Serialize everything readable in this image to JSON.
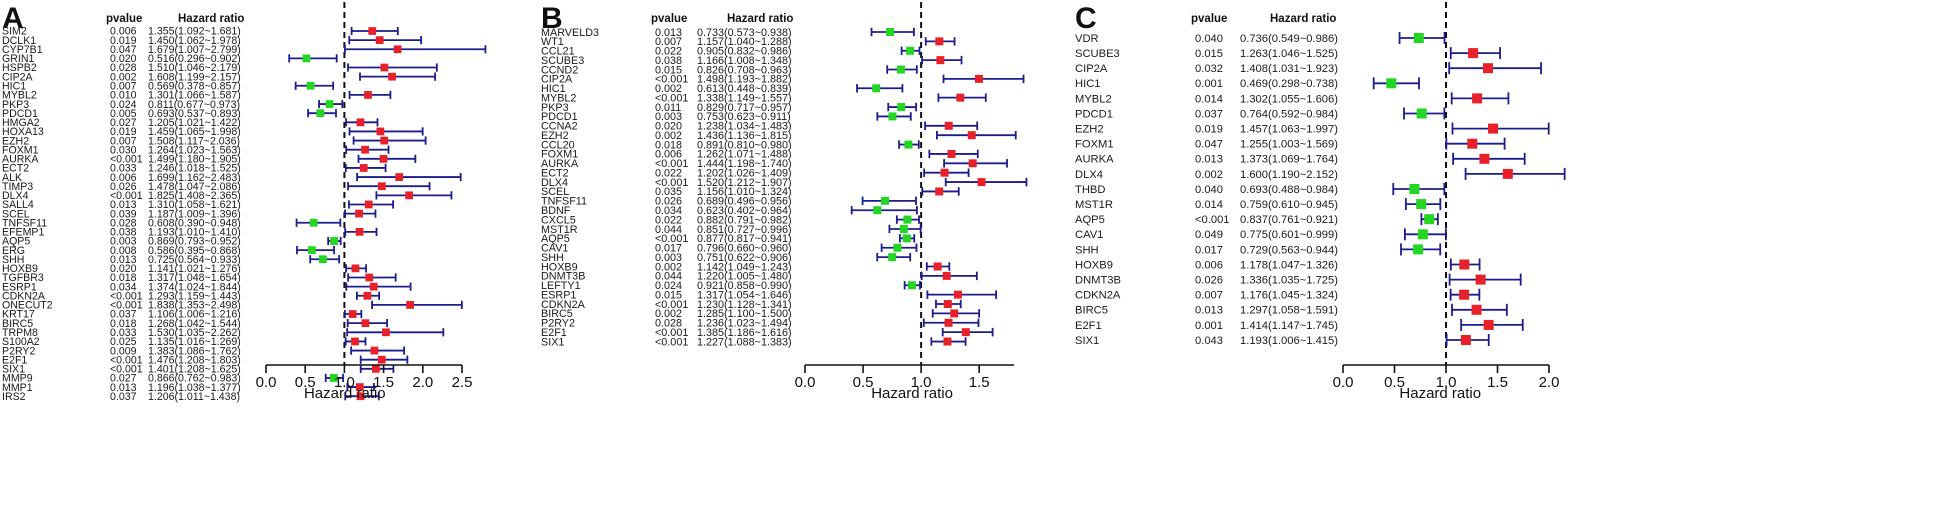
{
  "chart_data": [
    {
      "type": "forest",
      "panel": "A",
      "header": {
        "pvalue": "pvalue",
        "hr": "Hazard ratio"
      },
      "xlabel": "Hazard ratio",
      "xlim": [
        0,
        2.5
      ],
      "ticks": [
        "0.0",
        "0.5",
        "1.0",
        "1.5",
        "2.0",
        "2.5"
      ],
      "reference": 1.0,
      "genes": [
        {
          "name": "SIM2",
          "p": "0.006",
          "hr_text": "1.355(1.092~1.681)",
          "hr": 1.355,
          "lo": 1.092,
          "hi": 1.681
        },
        {
          "name": "DCLK1",
          "p": "0.019",
          "hr_text": "1.450(1.062~1.978)",
          "hr": 1.45,
          "lo": 1.062,
          "hi": 1.978
        },
        {
          "name": "CYP7B1",
          "p": "0.047",
          "hr_text": "1.679(1.007~2.799)",
          "hr": 1.679,
          "lo": 1.007,
          "hi": 2.799
        },
        {
          "name": "GRIN1",
          "p": "0.020",
          "hr_text": "0.516(0.296~0.902)",
          "hr": 0.516,
          "lo": 0.296,
          "hi": 0.902
        },
        {
          "name": "HSPB2",
          "p": "0.028",
          "hr_text": "1.510(1.046~2.179)",
          "hr": 1.51,
          "lo": 1.046,
          "hi": 2.179
        },
        {
          "name": "CIP2A",
          "p": "0.002",
          "hr_text": "1.608(1.199~2.157)",
          "hr": 1.608,
          "lo": 1.199,
          "hi": 2.157
        },
        {
          "name": "HIC1",
          "p": "0.007",
          "hr_text": "0.569(0.378~0.857)",
          "hr": 0.569,
          "lo": 0.378,
          "hi": 0.857
        },
        {
          "name": "MYBL2",
          "p": "0.010",
          "hr_text": "1.301(1.066~1.587)",
          "hr": 1.301,
          "lo": 1.066,
          "hi": 1.587
        },
        {
          "name": "PKP3",
          "p": "0.024",
          "hr_text": "0.811(0.677~0.973)",
          "hr": 0.811,
          "lo": 0.677,
          "hi": 0.973
        },
        {
          "name": "PDCD1",
          "p": "0.005",
          "hr_text": "0.693(0.537~0.893)",
          "hr": 0.693,
          "lo": 0.537,
          "hi": 0.893
        },
        {
          "name": "HMGA2",
          "p": "0.027",
          "hr_text": "1.205(1.021~1.422)",
          "hr": 1.205,
          "lo": 1.021,
          "hi": 1.422
        },
        {
          "name": "HOXA13",
          "p": "0.019",
          "hr_text": "1.459(1.065~1.998)",
          "hr": 1.459,
          "lo": 1.065,
          "hi": 1.998
        },
        {
          "name": "EZH2",
          "p": "0.007",
          "hr_text": "1.508(1.117~2.036)",
          "hr": 1.508,
          "lo": 1.117,
          "hi": 2.036
        },
        {
          "name": "FOXM1",
          "p": "0.030",
          "hr_text": "1.264(1.023~1.563)",
          "hr": 1.264,
          "lo": 1.023,
          "hi": 1.563
        },
        {
          "name": "AURKA",
          "p": "<0.001",
          "hr_text": "1.499(1.180~1.905)",
          "hr": 1.499,
          "lo": 1.18,
          "hi": 1.905
        },
        {
          "name": "ECT2",
          "p": "0.033",
          "hr_text": "1.246(1.018~1.525)",
          "hr": 1.246,
          "lo": 1.018,
          "hi": 1.525
        },
        {
          "name": "ALK",
          "p": "0.006",
          "hr_text": "1.699(1.162~2.483)",
          "hr": 1.699,
          "lo": 1.162,
          "hi": 2.483
        },
        {
          "name": "TIMP3",
          "p": "0.026",
          "hr_text": "1.478(1.047~2.086)",
          "hr": 1.478,
          "lo": 1.047,
          "hi": 2.086
        },
        {
          "name": "DLX4",
          "p": "<0.001",
          "hr_text": "1.825(1.408~2.365)",
          "hr": 1.825,
          "lo": 1.408,
          "hi": 2.365
        },
        {
          "name": "SALL4",
          "p": "0.013",
          "hr_text": "1.310(1.058~1.621)",
          "hr": 1.31,
          "lo": 1.058,
          "hi": 1.621
        },
        {
          "name": "SCEL",
          "p": "0.039",
          "hr_text": "1.187(1.009~1.396)",
          "hr": 1.187,
          "lo": 1.009,
          "hi": 1.396
        },
        {
          "name": "TNFSF11",
          "p": "0.028",
          "hr_text": "0.608(0.390~0.948)",
          "hr": 0.608,
          "lo": 0.39,
          "hi": 0.948
        },
        {
          "name": "EFEMP1",
          "p": "0.038",
          "hr_text": "1.193(1.010~1.410)",
          "hr": 1.193,
          "lo": 1.01,
          "hi": 1.41
        },
        {
          "name": "AQP5",
          "p": "0.003",
          "hr_text": "0.869(0.793~0.952)",
          "hr": 0.869,
          "lo": 0.793,
          "hi": 0.952
        },
        {
          "name": "ERG",
          "p": "0.008",
          "hr_text": "0.586(0.395~0.868)",
          "hr": 0.586,
          "lo": 0.395,
          "hi": 0.868
        },
        {
          "name": "SHH",
          "p": "0.013",
          "hr_text": "0.725(0.564~0.933)",
          "hr": 0.725,
          "lo": 0.564,
          "hi": 0.933
        },
        {
          "name": "HOXB9",
          "p": "0.020",
          "hr_text": "1.141(1.021~1.276)",
          "hr": 1.141,
          "lo": 1.021,
          "hi": 1.276
        },
        {
          "name": "TGFBR3",
          "p": "0.018",
          "hr_text": "1.317(1.048~1.654)",
          "hr": 1.317,
          "lo": 1.048,
          "hi": 1.654
        },
        {
          "name": "ESRP1",
          "p": "0.034",
          "hr_text": "1.374(1.024~1.844)",
          "hr": 1.374,
          "lo": 1.024,
          "hi": 1.844
        },
        {
          "name": "CDKN2A",
          "p": "<0.001",
          "hr_text": "1.293(1.159~1.443)",
          "hr": 1.293,
          "lo": 1.159,
          "hi": 1.443
        },
        {
          "name": "ONECUT2",
          "p": "<0.001",
          "hr_text": "1.838(1.353~2.498)",
          "hr": 1.838,
          "lo": 1.353,
          "hi": 2.498
        },
        {
          "name": "KRT17",
          "p": "0.037",
          "hr_text": "1.106(1.006~1.216)",
          "hr": 1.106,
          "lo": 1.006,
          "hi": 1.216
        },
        {
          "name": "BIRC5",
          "p": "0.018",
          "hr_text": "1.268(1.042~1.544)",
          "hr": 1.268,
          "lo": 1.042,
          "hi": 1.544
        },
        {
          "name": "TRPM8",
          "p": "0.033",
          "hr_text": "1.530(1.035~2.262)",
          "hr": 1.53,
          "lo": 1.035,
          "hi": 2.262
        },
        {
          "name": "S100A2",
          "p": "0.025",
          "hr_text": "1.135(1.016~1.269)",
          "hr": 1.135,
          "lo": 1.016,
          "hi": 1.269
        },
        {
          "name": "P2RY2",
          "p": "0.009",
          "hr_text": "1.383(1.086~1.762)",
          "hr": 1.383,
          "lo": 1.086,
          "hi": 1.762
        },
        {
          "name": "E2F1",
          "p": "<0.001",
          "hr_text": "1.476(1.208~1.803)",
          "hr": 1.476,
          "lo": 1.208,
          "hi": 1.803
        },
        {
          "name": "SIX1",
          "p": "<0.001",
          "hr_text": "1.401(1.208~1.625)",
          "hr": 1.401,
          "lo": 1.208,
          "hi": 1.625
        },
        {
          "name": "MMP9",
          "p": "0.027",
          "hr_text": "0.866(0.762~0.983)",
          "hr": 0.866,
          "lo": 0.762,
          "hi": 0.983
        },
        {
          "name": "MMP1",
          "p": "0.013",
          "hr_text": "1.196(1.038~1.377)",
          "hr": 1.196,
          "lo": 1.038,
          "hi": 1.377
        },
        {
          "name": "IRS2",
          "p": "0.037",
          "hr_text": "1.206(1.011~1.438)",
          "hr": 1.206,
          "lo": 1.011,
          "hi": 1.438
        }
      ]
    },
    {
      "type": "forest",
      "panel": "B",
      "header": {
        "pvalue": "pvalue",
        "hr": "Hazard ratio"
      },
      "xlabel": "Hazard ratio",
      "xlim": [
        0,
        1.8
      ],
      "ticks": [
        "0.0",
        "0.5",
        "1.0",
        "1.5"
      ],
      "reference": 1.0,
      "genes": [
        {
          "name": "MARVELD3",
          "p": "0.013",
          "hr_text": "0.733(0.573~0.938)",
          "hr": 0.733,
          "lo": 0.573,
          "hi": 0.938
        },
        {
          "name": "WT1",
          "p": "0.007",
          "hr_text": "1.157(1.040~1.288)",
          "hr": 1.157,
          "lo": 1.04,
          "hi": 1.288
        },
        {
          "name": "CCL21",
          "p": "0.022",
          "hr_text": "0.905(0.832~0.986)",
          "hr": 0.905,
          "lo": 0.832,
          "hi": 0.986
        },
        {
          "name": "SCUBE3",
          "p": "0.038",
          "hr_text": "1.166(1.008~1.348)",
          "hr": 1.166,
          "lo": 1.008,
          "hi": 1.348
        },
        {
          "name": "CCND2",
          "p": "0.015",
          "hr_text": "0.826(0.708~0.963)",
          "hr": 0.826,
          "lo": 0.708,
          "hi": 0.963
        },
        {
          "name": "CIP2A",
          "p": "<0.001",
          "hr_text": "1.498(1.193~1.882)",
          "hr": 1.498,
          "lo": 1.193,
          "hi": 1.882
        },
        {
          "name": "HIC1",
          "p": "0.002",
          "hr_text": "0.613(0.448~0.839)",
          "hr": 0.613,
          "lo": 0.448,
          "hi": 0.839
        },
        {
          "name": "MYBL2",
          "p": "<0.001",
          "hr_text": "1.338(1.149~1.557)",
          "hr": 1.338,
          "lo": 1.149,
          "hi": 1.557
        },
        {
          "name": "PKP3",
          "p": "0.011",
          "hr_text": "0.829(0.717~0.957)",
          "hr": 0.829,
          "lo": 0.717,
          "hi": 0.957
        },
        {
          "name": "PDCD1",
          "p": "0.003",
          "hr_text": "0.753(0.623~0.911)",
          "hr": 0.753,
          "lo": 0.623,
          "hi": 0.911
        },
        {
          "name": "CCNA2",
          "p": "0.020",
          "hr_text": "1.238(1.034~1.483)",
          "hr": 1.238,
          "lo": 1.034,
          "hi": 1.483
        },
        {
          "name": "EZH2",
          "p": "0.002",
          "hr_text": "1.436(1.136~1.815)",
          "hr": 1.436,
          "lo": 1.136,
          "hi": 1.815
        },
        {
          "name": "CCL20",
          "p": "0.018",
          "hr_text": "0.891(0.810~0.980)",
          "hr": 0.891,
          "lo": 0.81,
          "hi": 0.98
        },
        {
          "name": "FOXM1",
          "p": "0.006",
          "hr_text": "1.262(1.071~1.488)",
          "hr": 1.262,
          "lo": 1.071,
          "hi": 1.488
        },
        {
          "name": "AURKA",
          "p": "<0.001",
          "hr_text": "1.444(1.198~1.740)",
          "hr": 1.444,
          "lo": 1.198,
          "hi": 1.74
        },
        {
          "name": "ECT2",
          "p": "0.022",
          "hr_text": "1.202(1.026~1.409)",
          "hr": 1.202,
          "lo": 1.026,
          "hi": 1.409
        },
        {
          "name": "DLX4",
          "p": "<0.001",
          "hr_text": "1.520(1.212~1.907)",
          "hr": 1.52,
          "lo": 1.212,
          "hi": 1.907
        },
        {
          "name": "SCEL",
          "p": "0.035",
          "hr_text": "1.156(1.010~1.324)",
          "hr": 1.156,
          "lo": 1.01,
          "hi": 1.324
        },
        {
          "name": "TNFSF11",
          "p": "0.026",
          "hr_text": "0.689(0.496~0.956)",
          "hr": 0.689,
          "lo": 0.496,
          "hi": 0.956
        },
        {
          "name": "BDNF",
          "p": "0.034",
          "hr_text": "0.623(0.402~0.964)",
          "hr": 0.623,
          "lo": 0.402,
          "hi": 0.964
        },
        {
          "name": "CXCL5",
          "p": "0.022",
          "hr_text": "0.882(0.791~0.982)",
          "hr": 0.882,
          "lo": 0.791,
          "hi": 0.982
        },
        {
          "name": "MST1R",
          "p": "0.044",
          "hr_text": "0.851(0.727~0.996)",
          "hr": 0.851,
          "lo": 0.727,
          "hi": 0.996
        },
        {
          "name": "AQP5",
          "p": "<0.001",
          "hr_text": "0.877(0.817~0.941)",
          "hr": 0.877,
          "lo": 0.817,
          "hi": 0.941
        },
        {
          "name": "CAV1",
          "p": "0.017",
          "hr_text": "0.796(0.660~0.960)",
          "hr": 0.796,
          "lo": 0.66,
          "hi": 0.96
        },
        {
          "name": "SHH",
          "p": "0.003",
          "hr_text": "0.751(0.622~0.906)",
          "hr": 0.751,
          "lo": 0.622,
          "hi": 0.906
        },
        {
          "name": "HOXB9",
          "p": "0.002",
          "hr_text": "1.142(1.049~1.243)",
          "hr": 1.142,
          "lo": 1.049,
          "hi": 1.243
        },
        {
          "name": "DNMT3B",
          "p": "0.044",
          "hr_text": "1.220(1.005~1.480)",
          "hr": 1.22,
          "lo": 1.005,
          "hi": 1.48
        },
        {
          "name": "LEFTY1",
          "p": "0.024",
          "hr_text": "0.921(0.858~0.990)",
          "hr": 0.921,
          "lo": 0.858,
          "hi": 0.99
        },
        {
          "name": "ESRP1",
          "p": "0.015",
          "hr_text": "1.317(1.054~1.646)",
          "hr": 1.317,
          "lo": 1.054,
          "hi": 1.646
        },
        {
          "name": "CDKN2A",
          "p": "<0.001",
          "hr_text": "1.230(1.128~1.341)",
          "hr": 1.23,
          "lo": 1.128,
          "hi": 1.341
        },
        {
          "name": "BIRC5",
          "p": "0.002",
          "hr_text": "1.285(1.100~1.500)",
          "hr": 1.285,
          "lo": 1.1,
          "hi": 1.5
        },
        {
          "name": "P2RY2",
          "p": "0.028",
          "hr_text": "1.236(1.023~1.494)",
          "hr": 1.236,
          "lo": 1.023,
          "hi": 1.494
        },
        {
          "name": "E2F1",
          "p": "<0.001",
          "hr_text": "1.385(1.186~1.616)",
          "hr": 1.385,
          "lo": 1.186,
          "hi": 1.616
        },
        {
          "name": "SIX1",
          "p": "<0.001",
          "hr_text": "1.227(1.088~1.383)",
          "hr": 1.227,
          "lo": 1.088,
          "hi": 1.383
        }
      ]
    },
    {
      "type": "forest",
      "panel": "C",
      "header": {
        "pvalue": "pvalue",
        "hr": "Hazard ratio"
      },
      "xlabel": "Hazard ratio",
      "xlim": [
        0,
        2.0
      ],
      "ticks": [
        "0.0",
        "0.5",
        "1.0",
        "1.5",
        "2.0"
      ],
      "reference": 1.0,
      "genes": [
        {
          "name": "VDR",
          "p": "0.040",
          "hr_text": "0.736(0.549~0.986)",
          "hr": 0.736,
          "lo": 0.549,
          "hi": 0.986
        },
        {
          "name": "SCUBE3",
          "p": "0.015",
          "hr_text": "1.263(1.046~1.525)",
          "hr": 1.263,
          "lo": 1.046,
          "hi": 1.525
        },
        {
          "name": "CIP2A",
          "p": "0.032",
          "hr_text": "1.408(1.031~1.923)",
          "hr": 1.408,
          "lo": 1.031,
          "hi": 1.923
        },
        {
          "name": "HIC1",
          "p": "0.001",
          "hr_text": "0.469(0.298~0.738)",
          "hr": 0.469,
          "lo": 0.298,
          "hi": 0.738
        },
        {
          "name": "MYBL2",
          "p": "0.014",
          "hr_text": "1.302(1.055~1.606)",
          "hr": 1.302,
          "lo": 1.055,
          "hi": 1.606
        },
        {
          "name": "PDCD1",
          "p": "0.037",
          "hr_text": "0.764(0.592~0.984)",
          "hr": 0.764,
          "lo": 0.592,
          "hi": 0.984
        },
        {
          "name": "EZH2",
          "p": "0.019",
          "hr_text": "1.457(1.063~1.997)",
          "hr": 1.457,
          "lo": 1.063,
          "hi": 1.997
        },
        {
          "name": "FOXM1",
          "p": "0.047",
          "hr_text": "1.255(1.003~1.569)",
          "hr": 1.255,
          "lo": 1.003,
          "hi": 1.569
        },
        {
          "name": "AURKA",
          "p": "0.013",
          "hr_text": "1.373(1.069~1.764)",
          "hr": 1.373,
          "lo": 1.069,
          "hi": 1.764
        },
        {
          "name": "DLX4",
          "p": "0.002",
          "hr_text": "1.600(1.190~2.152)",
          "hr": 1.6,
          "lo": 1.19,
          "hi": 2.152
        },
        {
          "name": "THBD",
          "p": "0.040",
          "hr_text": "0.693(0.488~0.984)",
          "hr": 0.693,
          "lo": 0.488,
          "hi": 0.984
        },
        {
          "name": "MST1R",
          "p": "0.014",
          "hr_text": "0.759(0.610~0.945)",
          "hr": 0.759,
          "lo": 0.61,
          "hi": 0.945
        },
        {
          "name": "AQP5",
          "p": "<0.001",
          "hr_text": "0.837(0.761~0.921)",
          "hr": 0.837,
          "lo": 0.761,
          "hi": 0.921
        },
        {
          "name": "CAV1",
          "p": "0.049",
          "hr_text": "0.775(0.601~0.999)",
          "hr": 0.775,
          "lo": 0.601,
          "hi": 0.999
        },
        {
          "name": "SHH",
          "p": "0.017",
          "hr_text": "0.729(0.563~0.944)",
          "hr": 0.729,
          "lo": 0.563,
          "hi": 0.944
        },
        {
          "name": "HOXB9",
          "p": "0.006",
          "hr_text": "1.178(1.047~1.326)",
          "hr": 1.178,
          "lo": 1.047,
          "hi": 1.326
        },
        {
          "name": "DNMT3B",
          "p": "0.026",
          "hr_text": "1.336(1.035~1.725)",
          "hr": 1.336,
          "lo": 1.035,
          "hi": 1.725
        },
        {
          "name": "CDKN2A",
          "p": "0.007",
          "hr_text": "1.176(1.045~1.324)",
          "hr": 1.176,
          "lo": 1.045,
          "hi": 1.324
        },
        {
          "name": "BIRC5",
          "p": "0.013",
          "hr_text": "1.297(1.058~1.591)",
          "hr": 1.297,
          "lo": 1.058,
          "hi": 1.591
        },
        {
          "name": "E2F1",
          "p": "0.001",
          "hr_text": "1.414(1.147~1.745)",
          "hr": 1.414,
          "lo": 1.147,
          "hi": 1.745
        },
        {
          "name": "SIX1",
          "p": "0.043",
          "hr_text": "1.193(1.006~1.415)",
          "hr": 1.193,
          "lo": 1.006,
          "hi": 1.415
        }
      ]
    }
  ],
  "colors": {
    "risk_marker": "#e8202a",
    "protective_marker": "#22d622",
    "ci_line": "#1c1c8c",
    "axis": "#111111",
    "reference_line": "#111111"
  }
}
